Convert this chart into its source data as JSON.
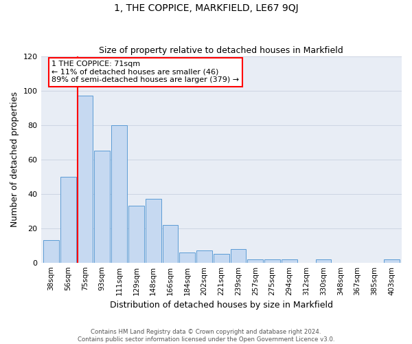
{
  "title": "1, THE COPPICE, MARKFIELD, LE67 9QJ",
  "subtitle": "Size of property relative to detached houses in Markfield",
  "xlabel": "Distribution of detached houses by size in Markfield",
  "ylabel": "Number of detached properties",
  "bar_labels": [
    "38sqm",
    "56sqm",
    "75sqm",
    "93sqm",
    "111sqm",
    "129sqm",
    "148sqm",
    "166sqm",
    "184sqm",
    "202sqm",
    "221sqm",
    "239sqm",
    "257sqm",
    "275sqm",
    "294sqm",
    "312sqm",
    "330sqm",
    "348sqm",
    "367sqm",
    "385sqm",
    "403sqm"
  ],
  "bar_heights": [
    13,
    50,
    97,
    65,
    80,
    33,
    37,
    22,
    6,
    7,
    5,
    8,
    2,
    2,
    2,
    0,
    2,
    0,
    0,
    0,
    2
  ],
  "bar_color": "#c6d9f1",
  "bar_edge_color": "#5b9bd5",
  "annotation_lines": [
    "1 THE COPPICE: 71sqm",
    "← 11% of detached houses are smaller (46)",
    "89% of semi-detached houses are larger (379) →"
  ],
  "ylim": [
    0,
    120
  ],
  "yticks": [
    0,
    20,
    40,
    60,
    80,
    100,
    120
  ],
  "footer_line1": "Contains HM Land Registry data © Crown copyright and database right 2024.",
  "footer_line2": "Contains public sector information licensed under the Open Government Licence v3.0.",
  "grid_color": "#cdd5e3",
  "background_color": "#e8edf5",
  "red_line_bar_index": 2,
  "figsize": [
    6.0,
    5.0
  ],
  "dpi": 100
}
